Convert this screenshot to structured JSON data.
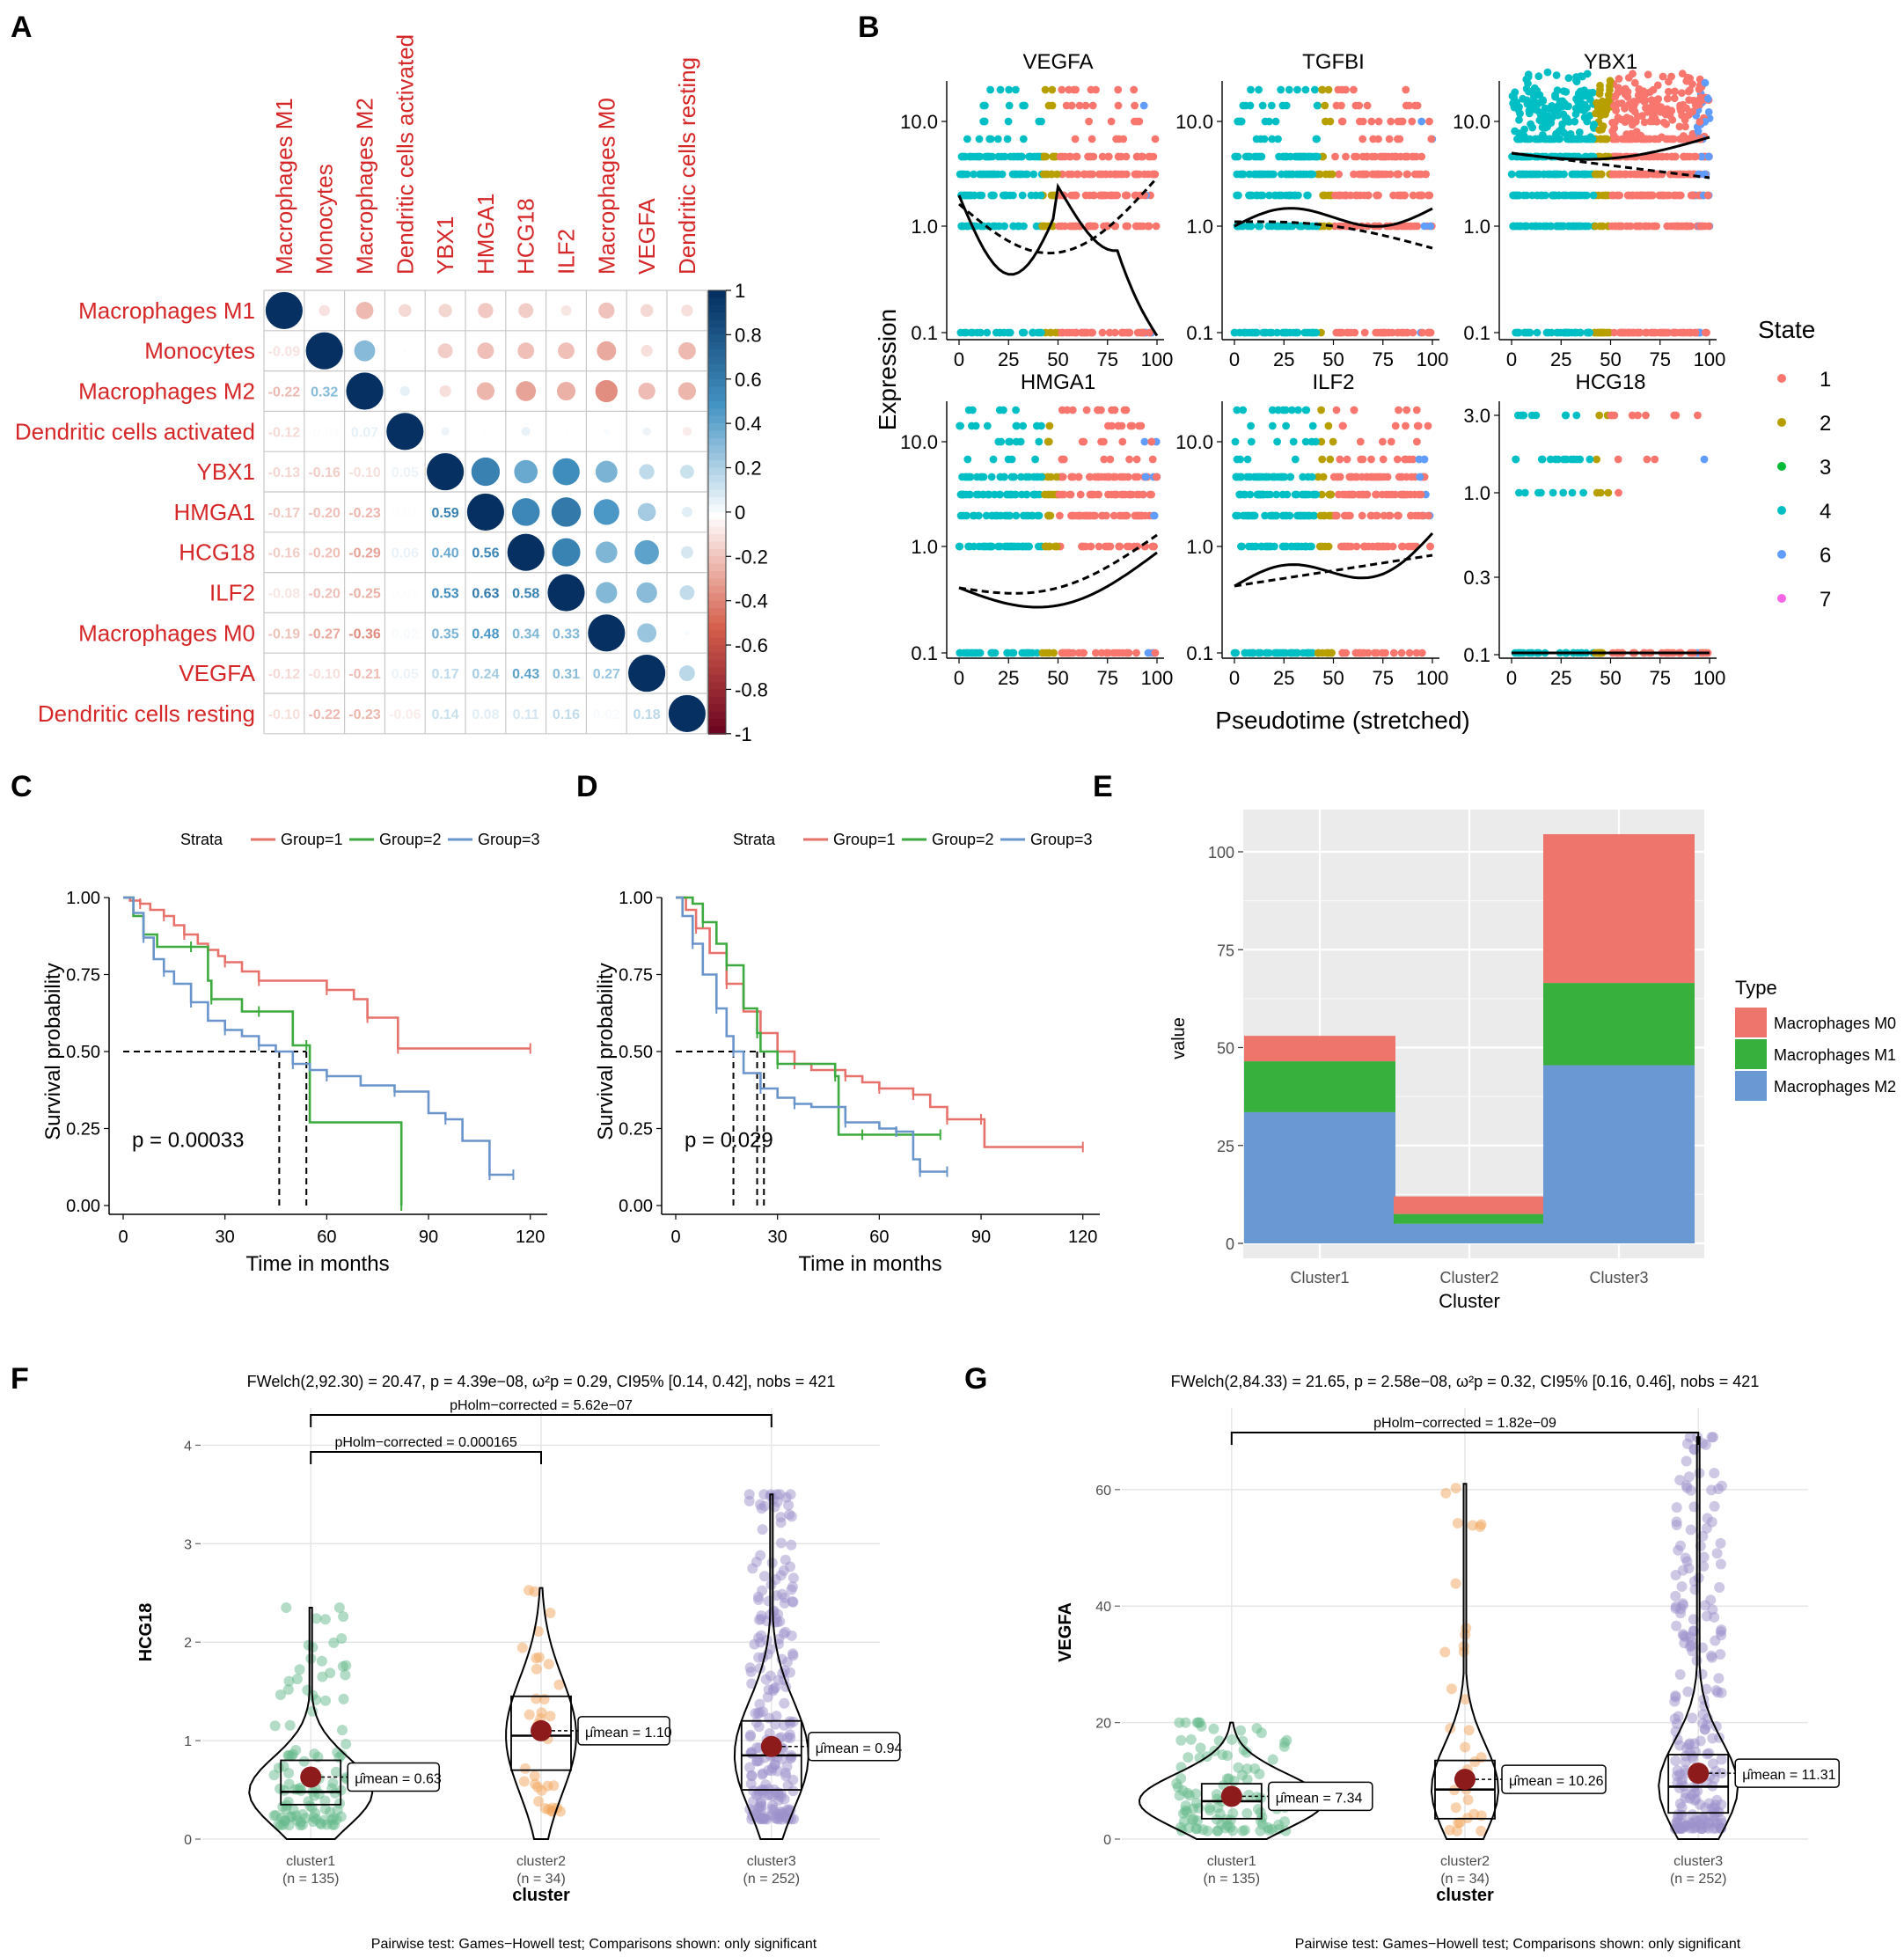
{
  "panel_labels": [
    "A",
    "B",
    "C",
    "D",
    "E",
    "F",
    "G"
  ],
  "colors": {
    "red": "#d62728",
    "s1": "#F8766D",
    "s2": "#B79F00",
    "s3": "#00BA38",
    "s4": "#00BFC4",
    "s6": "#619CFF",
    "s7": "#F564E3",
    "km1": "#E7716B",
    "km2": "#3DAA3F",
    "km3": "#6A94CC",
    "m0": "#EE756B",
    "m1": "#37B03D",
    "m2": "#6A98D2",
    "c1": "#66B98C",
    "c2": "#F2A65E",
    "c3": "#9E92CC",
    "mean": "#8E1B1B"
  },
  "chart_data": [
    {
      "panel": "A",
      "type": "heatmap",
      "variables": [
        "Macrophages M1",
        "Monocytes",
        "Macrophages M2",
        "Dendritic cells activated",
        "YBX1",
        "HMGA1",
        "HCG18",
        "ILF2",
        "Macrophages M0",
        "VEGFA",
        "Dendritic cells resting"
      ],
      "lower_labels": [
        [],
        [
          "-0.09"
        ],
        [
          "-0.22",
          "0.32"
        ],
        [
          "-0.12",
          "-0.01",
          "0.07"
        ],
        [
          "-0.13",
          "-0.16",
          "-0.10",
          "0.05"
        ],
        [
          "-0.17",
          "-0.20",
          "-0.23",
          "0.01",
          "0.59"
        ],
        [
          "-0.16",
          "-0.20",
          "-0.29",
          "0.06",
          "0.40",
          "0.56"
        ],
        [
          "-0.08",
          "-0.20",
          "-0.25",
          "0.01",
          "0.53",
          "0.63",
          "0.58"
        ],
        [
          "-0.19",
          "-0.27",
          "-0.36",
          "0.02",
          "0.35",
          "0.48",
          "0.34",
          "0.33"
        ],
        [
          "-0.12",
          "-0.10",
          "-0.21",
          "0.05",
          "0.17",
          "0.24",
          "0.43",
          "0.31",
          "0.27"
        ],
        [
          "-0.10",
          "-0.22",
          "-0.23",
          "-0.06",
          "0.14",
          "0.08",
          "0.11",
          "0.16",
          "0.02",
          "0.18"
        ]
      ],
      "colorbar_ticks": [
        "1",
        "0.8",
        "0.6",
        "0.4",
        "0.2",
        "0",
        "-0.2",
        "-0.4",
        "-0.6",
        "-0.8",
        "-1"
      ]
    },
    {
      "panel": "B",
      "type": "scatter",
      "genes": [
        "VEGFA",
        "TGFBI",
        "YBX1",
        "HMGA1",
        "ILF2",
        "HCG18"
      ],
      "y_ticks": [
        [
          "10.0",
          "1.0",
          "0.1"
        ],
        [
          "10.0",
          "1.0",
          "0.1"
        ],
        [
          "10.0",
          "1.0",
          "0.1"
        ],
        [
          "10.0",
          "1.0",
          "0.1"
        ],
        [
          "10.0",
          "1.0",
          "0.1"
        ],
        [
          "3.0",
          "1.0",
          "0.3",
          "0.1"
        ]
      ],
      "x_ticks": [
        "0",
        "25",
        "50",
        "75",
        "100"
      ],
      "xlabel": "Pseudotime (stretched)",
      "ylabel": "Expression",
      "legend_title": "State",
      "states": [
        "1",
        "2",
        "3",
        "4",
        "6",
        "7"
      ]
    },
    {
      "panel": "C",
      "type": "line",
      "legend_title": "Strata",
      "groups": [
        "Group=1",
        "Group=2",
        "Group=3"
      ],
      "xlabel": "Time in months",
      "ylabel": "Survival probability",
      "x_ticks": [
        "0",
        "30",
        "60",
        "90",
        "120"
      ],
      "y_ticks": [
        "1.00",
        "0.75",
        "0.50",
        "0.25",
        "0.00"
      ],
      "pvalue": "p = 0.00033",
      "medians": [
        46,
        54
      ],
      "series": [
        {
          "name": "Group=1",
          "x": [
            0,
            2,
            5,
            8,
            12,
            15,
            18,
            22,
            25,
            28,
            30,
            35,
            40,
            50,
            60,
            68,
            72,
            80,
            81,
            120
          ],
          "y": [
            1,
            0.99,
            0.98,
            0.96,
            0.94,
            0.91,
            0.88,
            0.85,
            0.83,
            0.81,
            0.79,
            0.76,
            0.73,
            0.73,
            0.7,
            0.67,
            0.61,
            0.61,
            0.51,
            0.51
          ]
        },
        {
          "name": "Group=2",
          "x": [
            0,
            3,
            6,
            10,
            20,
            25,
            26,
            35,
            40,
            50,
            54,
            55,
            82
          ],
          "y": [
            1,
            0.94,
            0.88,
            0.84,
            0.84,
            0.73,
            0.67,
            0.63,
            0.63,
            0.52,
            0.52,
            0.27,
            0
          ]
        },
        {
          "name": "Group=3",
          "x": [
            0,
            3,
            6,
            9,
            12,
            15,
            20,
            25,
            30,
            35,
            40,
            45,
            50,
            55,
            60,
            70,
            80,
            90,
            95,
            100,
            108,
            115
          ],
          "y": [
            1,
            0.95,
            0.87,
            0.8,
            0.76,
            0.72,
            0.66,
            0.6,
            0.57,
            0.55,
            0.52,
            0.5,
            0.46,
            0.44,
            0.42,
            0.39,
            0.37,
            0.3,
            0.28,
            0.21,
            0.1,
            0.1
          ]
        }
      ]
    },
    {
      "panel": "D",
      "type": "line",
      "legend_title": "Strata",
      "groups": [
        "Group=1",
        "Group=2",
        "Group=3"
      ],
      "xlabel": "Time in months",
      "ylabel": "Survival probability",
      "x_ticks": [
        "0",
        "30",
        "60",
        "90",
        "120"
      ],
      "y_ticks": [
        "1.00",
        "0.75",
        "0.50",
        "0.25",
        "0.00"
      ],
      "pvalue": "p = 0.029",
      "medians": [
        17,
        24,
        26
      ],
      "series": [
        {
          "name": "Group=1",
          "x": [
            0,
            3,
            6,
            10,
            15,
            20,
            25,
            30,
            35,
            40,
            50,
            55,
            60,
            65,
            70,
            75,
            80,
            85,
            90,
            91,
            120
          ],
          "y": [
            1,
            0.96,
            0.9,
            0.82,
            0.72,
            0.63,
            0.56,
            0.5,
            0.46,
            0.44,
            0.42,
            0.4,
            0.38,
            0.38,
            0.36,
            0.32,
            0.28,
            0.28,
            0.28,
            0.19,
            0.19
          ]
        },
        {
          "name": "Group=2",
          "x": [
            0,
            5,
            8,
            12,
            15,
            20,
            24,
            25,
            30,
            40,
            47,
            48,
            55,
            60,
            78
          ],
          "y": [
            1,
            0.98,
            0.92,
            0.85,
            0.78,
            0.64,
            0.56,
            0.5,
            0.46,
            0.46,
            0.42,
            0.23,
            0.23,
            0.23,
            0.23
          ]
        },
        {
          "name": "Group=3",
          "x": [
            0,
            2,
            5,
            8,
            12,
            15,
            17,
            20,
            25,
            30,
            35,
            40,
            50,
            60,
            65,
            70,
            72,
            80
          ],
          "y": [
            1,
            0.94,
            0.85,
            0.75,
            0.64,
            0.55,
            0.5,
            0.43,
            0.38,
            0.35,
            0.33,
            0.32,
            0.27,
            0.25,
            0.24,
            0.15,
            0.11,
            0.11
          ]
        }
      ]
    },
    {
      "panel": "E",
      "type": "bar",
      "categories": [
        "Cluster1",
        "Cluster2",
        "Cluster3"
      ],
      "series": [
        {
          "name": "Macrophages M2",
          "values": [
            33.5,
            5,
            45.5
          ]
        },
        {
          "name": "Macrophages M1",
          "values": [
            13,
            2.5,
            21
          ]
        },
        {
          "name": "Macrophages M0",
          "values": [
            6.5,
            4.5,
            38
          ]
        }
      ],
      "xlabel": "Cluster",
      "ylabel": "value",
      "y_ticks": [
        "0",
        "25",
        "50",
        "75",
        "100"
      ],
      "legend_title": "Type",
      "legend_labels": [
        "Macrophages M0",
        "Macrophages M1",
        "Macrophages M2"
      ]
    },
    {
      "panel": "F",
      "type": "scatter",
      "title": "FWelch(2,92.30) = 20.47, p = 4.39e−08, ω²p = 0.29, CI95% [0.14, 0.42], nobs = 421",
      "ylabel": "HCG18",
      "xlabel": "cluster",
      "categories": [
        "cluster1",
        "cluster2",
        "cluster3"
      ],
      "n_labels": [
        "(n = 135)",
        "(n = 34)",
        "(n = 252)"
      ],
      "means": [
        0.63,
        1.1,
        0.94
      ],
      "mean_labels": [
        "μ̂mean = 0.63",
        "μ̂mean = 1.10",
        "μ̂mean = 0.94"
      ],
      "y_ticks": [
        "4",
        "3",
        "2",
        "1",
        "0"
      ],
      "pvalue_brackets": [
        "pHolm−corrected = 5.62e−07",
        "pHolm−corrected = 0.000165"
      ],
      "footer": "Pairwise test: Games−Howell test; Comparisons shown: only significant"
    },
    {
      "panel": "G",
      "type": "scatter",
      "title": "FWelch(2,84.33) = 21.65, p = 2.58e−08, ω²p = 0.32, CI95% [0.16, 0.46], nobs = 421",
      "ylabel": "VEGFA",
      "xlabel": "cluster",
      "categories": [
        "cluster1",
        "cluster2",
        "cluster3"
      ],
      "n_labels": [
        "(n = 135)",
        "(n = 34)",
        "(n = 252)"
      ],
      "means": [
        7.34,
        10.26,
        11.31
      ],
      "mean_labels": [
        "μ̂mean = 7.34",
        "μ̂mean = 10.26",
        "μ̂mean = 11.31"
      ],
      "y_ticks": [
        "60",
        "40",
        "20",
        "0"
      ],
      "pvalue_brackets": [
        "pHolm−corrected = 1.82e−09"
      ],
      "footer": "Pairwise test: Games−Howell test; Comparisons shown: only significant"
    }
  ]
}
